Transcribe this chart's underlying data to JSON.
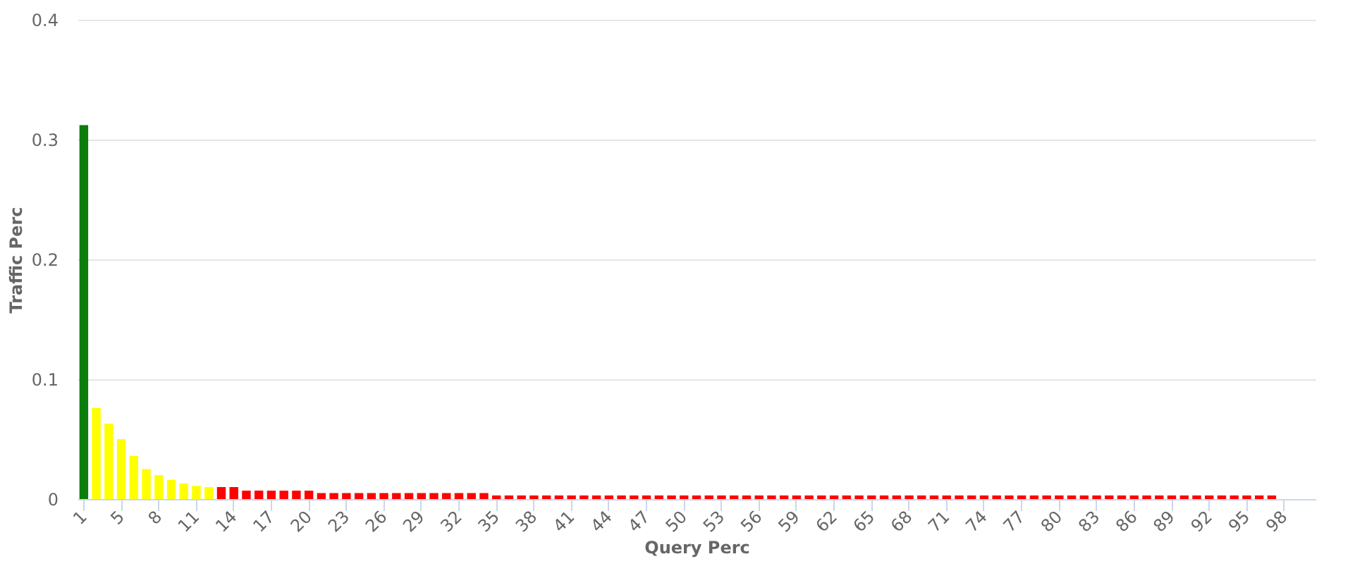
{
  "chart_data": {
    "type": "bar",
    "xlabel": "Query Perc",
    "ylabel": "Traffic Perc",
    "categories": [
      "1",
      null,
      null,
      "5",
      null,
      null,
      "8",
      null,
      null,
      "11",
      null,
      null,
      "14",
      null,
      null,
      "17",
      null,
      null,
      "20",
      null,
      null,
      "23",
      null,
      null,
      "26",
      null,
      null,
      "29",
      null,
      null,
      "32",
      null,
      null,
      "35",
      null,
      null,
      "38",
      null,
      null,
      "41",
      null,
      null,
      "44",
      null,
      null,
      "47",
      null,
      null,
      "50",
      null,
      null,
      "53",
      null,
      null,
      "56",
      null,
      null,
      "59",
      null,
      null,
      "62",
      null,
      null,
      "65",
      null,
      null,
      "68",
      null,
      null,
      "71",
      null,
      null,
      "74",
      null,
      null,
      "77",
      null,
      null,
      "80",
      null,
      null,
      "83",
      null,
      null,
      "86",
      null,
      null,
      "89",
      null,
      null,
      "92",
      null,
      null,
      "95",
      null,
      null,
      "98",
      null,
      null
    ],
    "values": [
      0.312,
      0.076,
      0.063,
      0.05,
      0.036,
      0.025,
      0.02,
      0.016,
      0.013,
      0.011,
      0.01,
      0.01,
      0.01,
      0.007,
      0.007,
      0.007,
      0.007,
      0.007,
      0.007,
      0.005,
      0.005,
      0.005,
      0.005,
      0.005,
      0.005,
      0.005,
      0.005,
      0.005,
      0.005,
      0.005,
      0.005,
      0.005,
      0.005,
      0.003,
      0.003,
      0.003,
      0.003,
      0.003,
      0.003,
      0.003,
      0.003,
      0.003,
      0.003,
      0.003,
      0.003,
      0.003,
      0.003,
      0.003,
      0.003,
      0.003,
      0.003,
      0.003,
      0.003,
      0.003,
      0.003,
      0.003,
      0.003,
      0.003,
      0.003,
      0.003,
      0.003,
      0.003,
      0.003,
      0.003,
      0.003,
      0.003,
      0.003,
      0.003,
      0.003,
      0.003,
      0.003,
      0.003,
      0.003,
      0.003,
      0.003,
      0.003,
      0.003,
      0.003,
      0.003,
      0.003,
      0.003,
      0.003,
      0.003,
      0.003,
      0.003,
      0.003,
      0.003,
      0.003,
      0.003,
      0.003,
      0.003,
      0.003,
      0.003,
      0.003,
      0.003,
      0.003,
      null,
      null,
      null
    ],
    "colors": [
      "#0b7d0b",
      "#ffff00",
      "#ffff00",
      "#ffff00",
      "#ffff00",
      "#ffff00",
      "#ffff00",
      "#ffff00",
      "#ffff00",
      "#ffff00",
      "#ffff00",
      "#ff0000",
      "#ff0000",
      "#ff0000",
      "#ff0000",
      "#ff0000",
      "#ff0000",
      "#ff0000",
      "#ff0000",
      "#ff0000",
      "#ff0000",
      "#ff0000",
      "#ff0000",
      "#ff0000",
      "#ff0000",
      "#ff0000",
      "#ff0000",
      "#ff0000",
      "#ff0000",
      "#ff0000",
      "#ff0000",
      "#ff0000",
      "#ff0000",
      "#ff0000",
      "#ff0000",
      "#ff0000",
      "#ff0000",
      "#ff0000",
      "#ff0000",
      "#ff0000",
      "#ff0000",
      "#ff0000",
      "#ff0000",
      "#ff0000",
      "#ff0000",
      "#ff0000",
      "#ff0000",
      "#ff0000",
      "#ff0000",
      "#ff0000",
      "#ff0000",
      "#ff0000",
      "#ff0000",
      "#ff0000",
      "#ff0000",
      "#ff0000",
      "#ff0000",
      "#ff0000",
      "#ff0000",
      "#ff0000",
      "#ff0000",
      "#ff0000",
      "#ff0000",
      "#ff0000",
      "#ff0000",
      "#ff0000",
      "#ff0000",
      "#ff0000",
      "#ff0000",
      "#ff0000",
      "#ff0000",
      "#ff0000",
      "#ff0000",
      "#ff0000",
      "#ff0000",
      "#ff0000",
      "#ff0000",
      "#ff0000",
      "#ff0000",
      "#ff0000",
      "#ff0000",
      "#ff0000",
      "#ff0000",
      "#ff0000",
      "#ff0000",
      "#ff0000",
      "#ff0000",
      "#ff0000",
      "#ff0000",
      "#ff0000",
      "#ff0000",
      "#ff0000",
      "#ff0000",
      "#ff0000",
      "#ff0000",
      "#ff0000",
      "#ff0000",
      "#ff0000",
      "#ff0000"
    ],
    "ylim": [
      0,
      0.4
    ],
    "yticks": [
      {
        "value": 0,
        "label": "0"
      },
      0.1,
      0.2,
      0.3,
      0.4
    ],
    "grid": "y"
  }
}
